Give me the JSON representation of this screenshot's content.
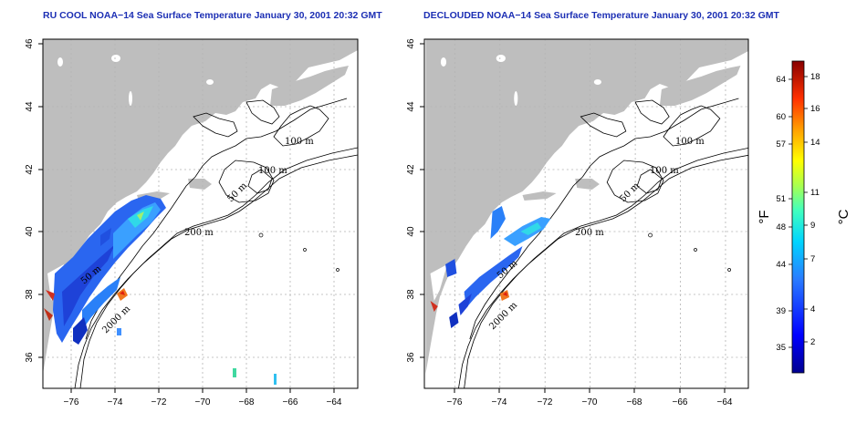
{
  "panels": [
    {
      "title": "RU COOL NOAA−14 Sea Surface Temperature January 30, 2001 20:32 GMT",
      "x_ticks": [
        "−76",
        "−74",
        "−72",
        "−70",
        "−68",
        "−66",
        "−64"
      ],
      "y_ticks": [
        "36",
        "38",
        "40",
        "42",
        "44",
        "46"
      ],
      "contour_labels": [
        "100 m",
        "100 m",
        "50 m",
        "200 m",
        "50 m",
        "2000 m"
      ]
    },
    {
      "title": "DECLOUDED NOAA−14 Sea Surface Temperature January 30, 2001 20:32 GMT",
      "x_ticks": [
        "−76",
        "−74",
        "−72",
        "−70",
        "−68",
        "−66",
        "−64"
      ],
      "y_ticks": [
        "36",
        "38",
        "40",
        "42",
        "44",
        "46"
      ],
      "contour_labels": [
        "100 m",
        "100 m",
        "50 m",
        "200 m",
        "50 m",
        "2000 m"
      ]
    }
  ],
  "colorbar": {
    "fahrenheit_label": "°F",
    "celsius_label": "°C",
    "fahrenheit_ticks": [
      "64",
      "60",
      "57",
      "51",
      "48",
      "44",
      "39",
      "35"
    ],
    "celsius_ticks": [
      "18",
      "16",
      "14",
      "11",
      "9",
      "7",
      "4",
      "2"
    ]
  },
  "colors": {
    "title": "#1c2fb4",
    "land": "#bebebe",
    "ocean": "#ffffff",
    "contour": "#000000",
    "grid": "#b4b4b4"
  }
}
